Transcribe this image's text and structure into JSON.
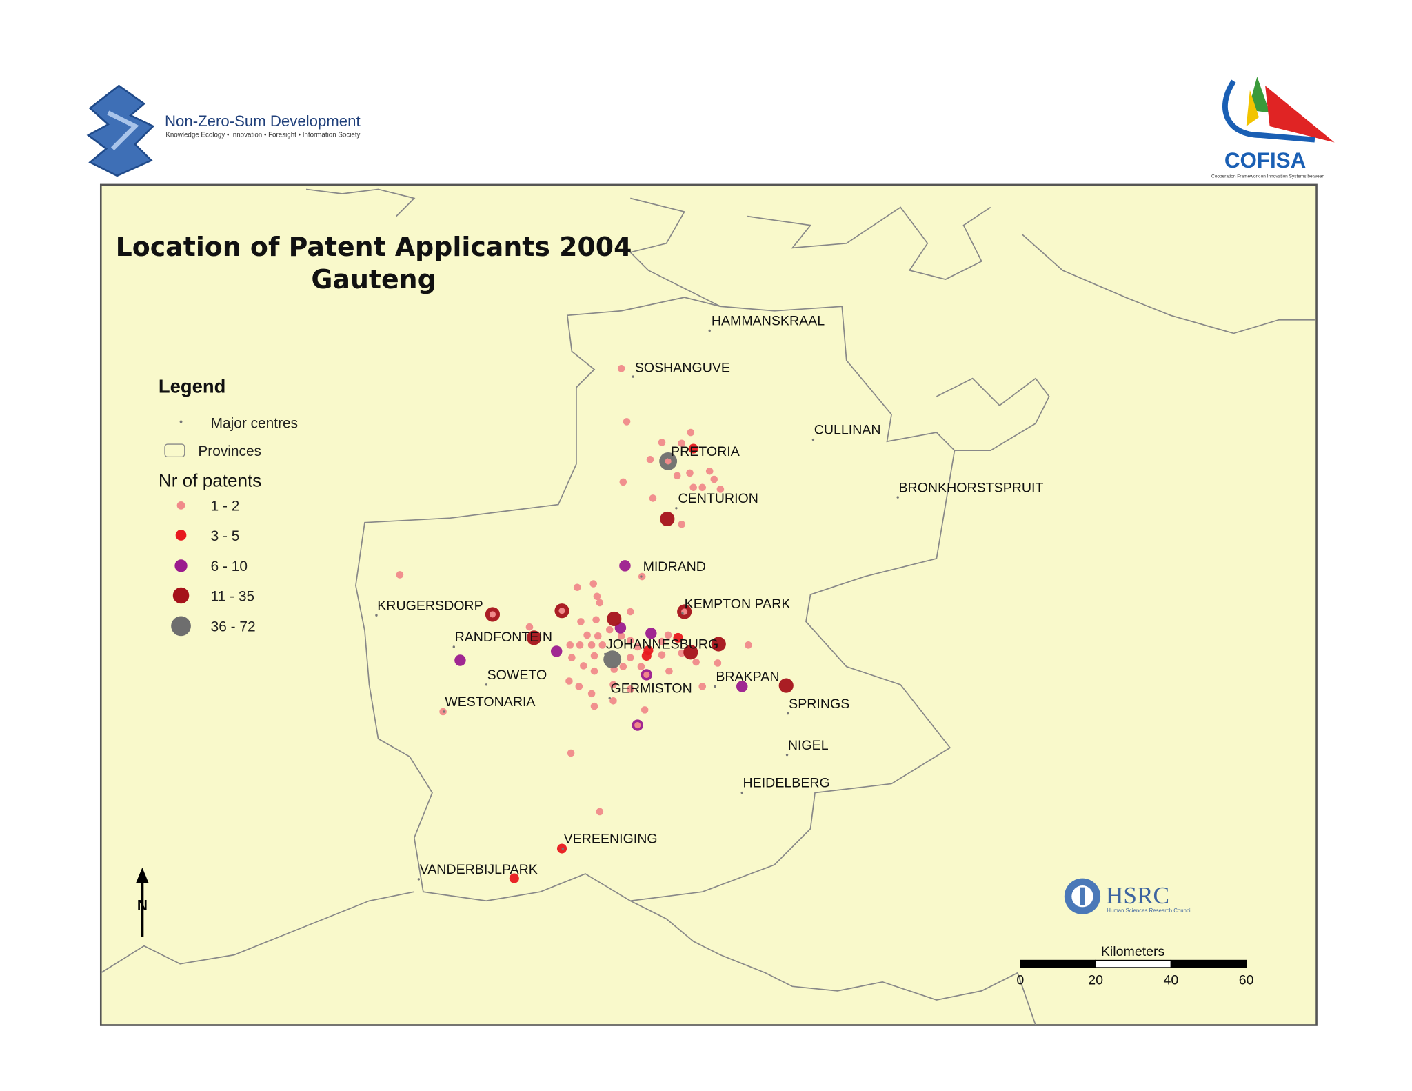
{
  "header": {
    "left_logo": {
      "name": "Non-Zero-Sum Development",
      "tagline": "Knowledge Ecology • Innovation • Foresight • Information Society"
    },
    "right_logo": {
      "name": "COFISA",
      "tagline": "Cooperation Framework on Innovation Systems between"
    }
  },
  "map": {
    "title": "Location of Patent Applicants 2004",
    "subtitle": "Gauteng",
    "legend": {
      "title": "Legend",
      "items": [
        {
          "label": "Major centres"
        },
        {
          "label": "Provinces"
        }
      ],
      "patents_title": "Nr of patents",
      "classes": [
        {
          "label": "1 - 2",
          "color": "#f08a8a"
        },
        {
          "label": "3 - 5",
          "color": "#e8191e"
        },
        {
          "label": "6 - 10",
          "color": "#9b1b8e"
        },
        {
          "label": "11 - 35",
          "color": "#a5121a"
        },
        {
          "label": "36 - 72",
          "color": "#6e6e6e"
        }
      ]
    },
    "places": [
      "HAMMANSKRAAL",
      "SOSHANGUVE",
      "CULLINAN",
      "PRETORIA",
      "CENTURION",
      "BRONKHORSTSPRUIT",
      "MIDRAND",
      "KEMPTON PARK",
      "KRUGERSDORP",
      "RANDFONTEIN",
      "JOHANNESBURG",
      "SOWETO",
      "BRAKPAN",
      "GERMISTON",
      "WESTONARIA",
      "SPRINGS",
      "NIGEL",
      "HEIDELBERG",
      "VEREENIGING",
      "VANDERBIJLPARK"
    ],
    "north": "N",
    "scale_bar": {
      "title": "Kilometers",
      "ticks": [
        0,
        20,
        40,
        60
      ]
    },
    "hsrc": {
      "name": "HSRC",
      "tagline": "Human Sciences Research Council"
    }
  }
}
